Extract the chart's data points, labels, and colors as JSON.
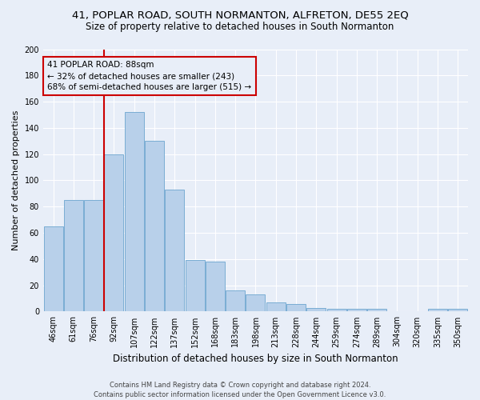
{
  "title1": "41, POPLAR ROAD, SOUTH NORMANTON, ALFRETON, DE55 2EQ",
  "title2": "Size of property relative to detached houses in South Normanton",
  "xlabel": "Distribution of detached houses by size in South Normanton",
  "ylabel": "Number of detached properties",
  "footer": "Contains HM Land Registry data © Crown copyright and database right 2024.\nContains public sector information licensed under the Open Government Licence v3.0.",
  "categories": [
    "46sqm",
    "61sqm",
    "76sqm",
    "92sqm",
    "107sqm",
    "122sqm",
    "137sqm",
    "152sqm",
    "168sqm",
    "183sqm",
    "198sqm",
    "213sqm",
    "228sqm",
    "244sqm",
    "259sqm",
    "274sqm",
    "289sqm",
    "304sqm",
    "320sqm",
    "335sqm",
    "350sqm"
  ],
  "values": [
    65,
    85,
    85,
    120,
    152,
    130,
    93,
    39,
    38,
    16,
    13,
    7,
    6,
    3,
    2,
    2,
    2,
    0,
    0,
    2,
    2
  ],
  "bar_color": "#b8d0ea",
  "bar_edge_color": "#7aadd4",
  "property_line_color": "#cc0000",
  "annotation_line1": "41 POPLAR ROAD: 88sqm",
  "annotation_line2": "← 32% of detached houses are smaller (243)",
  "annotation_line3": "68% of semi-detached houses are larger (515) →",
  "annotation_box_edgecolor": "#cc0000",
  "ylim": [
    0,
    200
  ],
  "yticks": [
    0,
    20,
    40,
    60,
    80,
    100,
    120,
    140,
    160,
    180,
    200
  ],
  "bg_color": "#e8eef8",
  "grid_color": "#ffffff",
  "title1_fontsize": 9.5,
  "title2_fontsize": 8.5,
  "xlabel_fontsize": 8.5,
  "ylabel_fontsize": 8,
  "tick_fontsize": 7,
  "footer_fontsize": 6,
  "annot_fontsize": 7.5
}
